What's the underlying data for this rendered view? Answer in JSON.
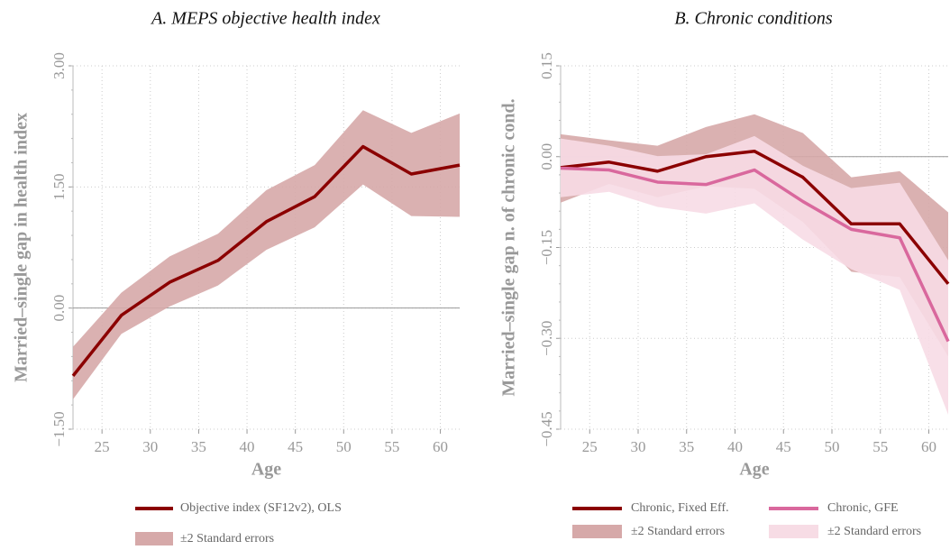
{
  "chart_data": [
    {
      "type": "line",
      "title": "A. MEPS objective health index",
      "x_label": "Age",
      "y_label": "Married–single gap in health index",
      "x": [
        22,
        27,
        32,
        37,
        42,
        47,
        52,
        57,
        62
      ],
      "xlim": [
        22,
        62
      ],
      "xticks": [
        25,
        30,
        35,
        40,
        45,
        50,
        55,
        60
      ],
      "ylim": [
        -1.5,
        3.0
      ],
      "yticks": [
        {
          "value": -1.5,
          "label": "−1.50"
        },
        {
          "value": 0,
          "label": "0.00"
        },
        {
          "value": 1.5,
          "label": "1.50"
        },
        {
          "value": 3.0,
          "label": "3.00"
        }
      ],
      "grid": true,
      "hline": 0,
      "bands": [
        {
          "name": "±2 Standard errors",
          "color": "#d6a9a9",
          "upper": [
            -0.48,
            0.19,
            0.64,
            0.92,
            1.46,
            1.77,
            2.45,
            2.17,
            2.41
          ],
          "lower": [
            -1.13,
            -0.32,
            0.02,
            0.28,
            0.72,
            1.0,
            1.53,
            1.14,
            1.13
          ]
        }
      ],
      "series": [
        {
          "name": "Objective index (SF12v2), OLS",
          "color": "#8b0000",
          "values": [
            -0.84,
            -0.09,
            0.32,
            0.59,
            1.07,
            1.38,
            2.0,
            1.66,
            1.77
          ]
        }
      ]
    },
    {
      "type": "line",
      "title": "B. Chronic conditions",
      "x_label": "Age",
      "y_label": "Married–single gap n. of chronic cond.",
      "x": [
        22,
        27,
        32,
        37,
        42,
        47,
        52,
        57,
        62
      ],
      "xlim": [
        22,
        62
      ],
      "xticks": [
        25,
        30,
        35,
        40,
        45,
        50,
        55,
        60
      ],
      "ylim": [
        -0.45,
        0.15
      ],
      "yticks": [
        {
          "value": -0.45,
          "label": "−0.45"
        },
        {
          "value": -0.3,
          "label": "−0.30"
        },
        {
          "value": -0.15,
          "label": "−0.15"
        },
        {
          "value": 0,
          "label": "0.00"
        },
        {
          "value": 0.15,
          "label": "0.15"
        }
      ],
      "grid": true,
      "hline": 0,
      "bands": [
        {
          "name": "±2 Standard errors",
          "color": "#d6a9a9",
          "upper": [
            0.037,
            0.027,
            0.018,
            0.049,
            0.07,
            0.039,
            -0.034,
            -0.024,
            -0.092
          ],
          "lower": [
            -0.076,
            -0.045,
            -0.067,
            -0.049,
            -0.053,
            -0.108,
            -0.19,
            -0.199,
            -0.33
          ]
        },
        {
          "name": "±2 Standard errors",
          "color": "#f7dce5",
          "upper": [
            0.03,
            0.018,
            0.001,
            0.004,
            0.034,
            -0.015,
            -0.052,
            -0.043,
            -0.171
          ],
          "lower": [
            -0.067,
            -0.058,
            -0.083,
            -0.094,
            -0.077,
            -0.137,
            -0.186,
            -0.22,
            -0.426
          ]
        }
      ],
      "series": [
        {
          "name": "Chronic, Fixed Eff.",
          "color": "#8b0000",
          "values": [
            -0.018,
            -0.009,
            -0.024,
            0.0,
            0.009,
            -0.034,
            -0.111,
            -0.111,
            -0.21
          ]
        },
        {
          "name": "Chronic, GFE",
          "color": "#d9689d",
          "values": [
            -0.019,
            -0.022,
            -0.042,
            -0.046,
            -0.022,
            -0.074,
            -0.12,
            -0.134,
            -0.305
          ]
        }
      ]
    }
  ]
}
